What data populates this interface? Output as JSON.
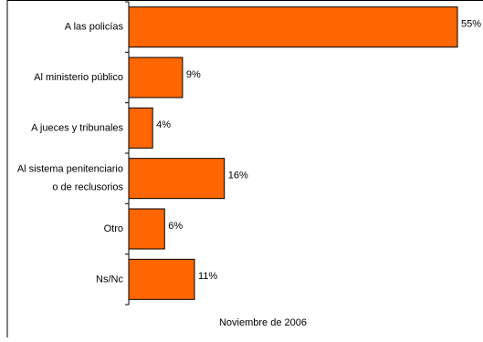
{
  "chart_data": {
    "type": "bar",
    "orientation": "horizontal",
    "categories": [
      [
        "A las policías"
      ],
      [
        "Al ministerio público"
      ],
      [
        "A jueces y tribunales"
      ],
      [
        "Al sistema penitenciario",
        "o de reclusorios"
      ],
      [
        "Otro"
      ],
      [
        "Ns/Nc"
      ]
    ],
    "values": [
      55,
      9,
      4,
      16,
      6,
      11
    ],
    "value_labels": [
      "55%",
      "9%",
      "4%",
      "16%",
      "6%",
      "11%"
    ],
    "xlim": [
      0,
      55
    ],
    "footer": "Noviembre de 2006",
    "grid": false,
    "legend": "none",
    "colors": {
      "bar_fill": "#ff6600",
      "bar_stroke": "#000000",
      "axis": "#000000",
      "frame": "#000000"
    }
  }
}
